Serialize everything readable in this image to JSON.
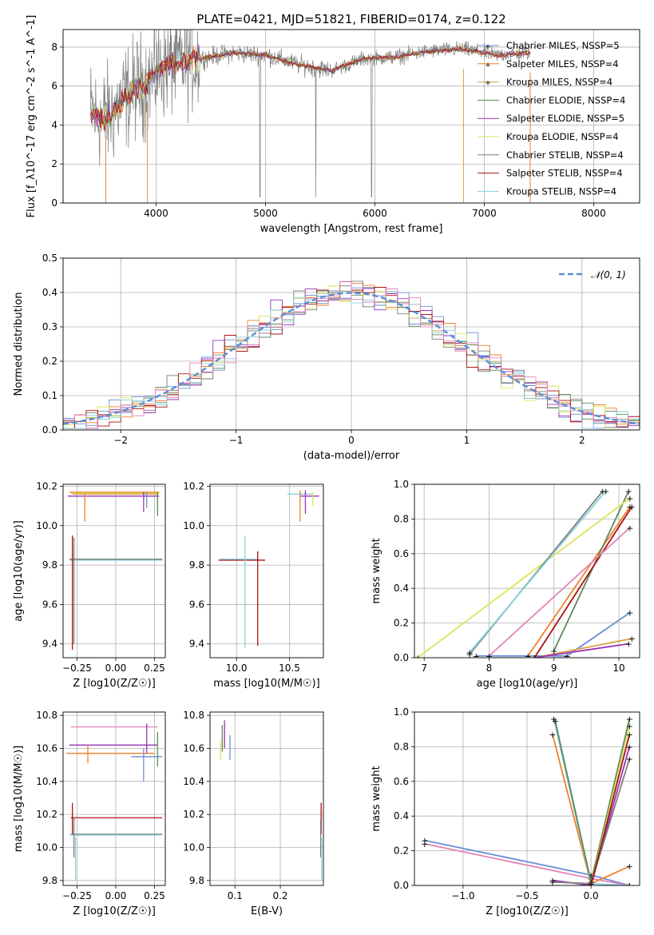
{
  "figure_title": "PLATE=0421, MJD=51821, FIBERID=0174, z=0.122",
  "colors": {
    "chabrier_miles": "#6a8fd8",
    "salpeter_miles": "#f07f2a",
    "kroupa_miles": "#d9a23a",
    "chabrier_elodie": "#5a8a5a",
    "salpeter_elodie": "#9933bb",
    "kroupa_elodie": "#dde55a",
    "chabrier_stelib": "#7f7f7f",
    "salpeter_stelib": "#aa1111",
    "kroupa_stelib": "#88d0dd",
    "normal_curve": "#5b8fd6",
    "pink": "#e283b8",
    "grid": "#b0b0b0"
  },
  "chart_data": [
    {
      "type": "line",
      "panel": "spectrum",
      "xlabel": "wavelength [Angstrom, rest frame]",
      "ylabel": "Flux [f_λ10^-17 erg cm^-2 s^-1 A^-1]",
      "xlim": [
        3150,
        8420
      ],
      "ylim": [
        0,
        8.9
      ],
      "xticks": [
        4000,
        5000,
        6000,
        7000,
        8000
      ],
      "yticks": [
        0,
        2,
        4,
        6,
        8
      ],
      "legend_position": "top-right",
      "legend": [
        "Chabrier MILES, N_SSP=5",
        "Salpeter MILES, N_SSP=4",
        "Kroupa MILES, N_SSP=4",
        "Chabrier ELODIE, N_SSP=4",
        "Salpeter ELODIE, N_SSP=5",
        "Kroupa ELODIE, N_SSP=4",
        "Chabrier STELIB, N_SSP=4",
        "Salpeter STELIB, N_SSP=4",
        "Kroupa STELIB, N_SSP=4"
      ],
      "continuum": {
        "x": [
          3400,
          3500,
          3600,
          3700,
          3800,
          3900,
          4000,
          4100,
          4300,
          4500,
          4700,
          5000,
          5300,
          5600,
          5900,
          6200,
          6500,
          6800,
          7100,
          7400
        ],
        "y": [
          4.7,
          4.3,
          4.6,
          5.3,
          5.9,
          6.1,
          6.7,
          7.1,
          7.3,
          7.5,
          7.7,
          7.6,
          7.1,
          6.8,
          7.4,
          7.5,
          7.8,
          7.9,
          7.6,
          7.7
        ]
      }
    },
    {
      "type": "line",
      "panel": "residual-histogram",
      "xlabel": "(data-model)/error",
      "ylabel": "Normed distribution",
      "xlim": [
        -2.5,
        2.5
      ],
      "ylim": [
        0,
        0.5
      ],
      "xticks": [
        -2,
        -1,
        0,
        1,
        2
      ],
      "yticks": [
        0.0,
        0.1,
        0.2,
        0.3,
        0.4,
        0.5
      ],
      "legend": [
        "𝒩(0, 1)"
      ],
      "legend_position": "top-right",
      "bin_width": 0.1
    },
    {
      "type": "scatter",
      "panel": "age-vs-Z",
      "xlabel": "Z [log10(Z/Z☉)]",
      "ylabel": "age [log10(age/yr)]",
      "xlim": [
        -0.34,
        0.32
      ],
      "ylim": [
        9.33,
        10.21
      ],
      "xticks": [
        -0.25,
        0.0,
        0.25
      ],
      "yticks": [
        9.4,
        9.6,
        9.8,
        10.0,
        10.2
      ],
      "hbars": [
        {
          "y": 10.17,
          "x0": -0.3,
          "x1": 0.28,
          "color": "#f07f2a"
        },
        {
          "y": 10.165,
          "x0": -0.29,
          "x1": 0.29,
          "color": "#dde55a"
        },
        {
          "y": 10.16,
          "x0": -0.28,
          "x1": 0.27,
          "color": "#d9a23a"
        },
        {
          "y": 10.15,
          "x0": -0.31,
          "x1": 0.28,
          "color": "#9933bb"
        },
        {
          "y": 9.83,
          "x0": -0.29,
          "x1": 0.3,
          "color": "#5a8a5a"
        },
        {
          "y": 9.825,
          "x0": -0.3,
          "x1": 0.3,
          "color": "#88d0dd"
        },
        {
          "y": 9.83,
          "x0": -0.3,
          "x1": 0.29,
          "color": "#7f7f7f"
        }
      ],
      "vbars": [
        {
          "x": -0.28,
          "y0": 9.37,
          "y1": 9.95,
          "color": "#aa1111"
        },
        {
          "x": -0.27,
          "y0": 9.4,
          "y1": 9.94,
          "color": "#7f7f7f"
        },
        {
          "x": -0.2,
          "y0": 10.02,
          "y1": 10.16,
          "color": "#f07f2a"
        },
        {
          "x": 0.18,
          "y0": 10.07,
          "y1": 10.17,
          "color": "#9933bb"
        },
        {
          "x": 0.2,
          "y0": 10.09,
          "y1": 10.17,
          "color": "#6a8fd8"
        },
        {
          "x": 0.27,
          "y0": 10.05,
          "y1": 10.17,
          "color": "#5a8a5a"
        }
      ]
    },
    {
      "type": "scatter",
      "panel": "age-vs-mass",
      "xlabel": "mass [log10(M/M☉)]",
      "ylabel": "",
      "xlim": [
        9.75,
        10.82
      ],
      "ylim": [
        9.33,
        10.21
      ],
      "xticks": [
        10.0,
        10.5
      ],
      "yticks": [
        9.4,
        9.6,
        9.8,
        10.0,
        10.2
      ],
      "hbars": [
        {
          "y": 10.16,
          "x0": 10.48,
          "x1": 10.72,
          "color": "#88d0dd"
        },
        {
          "y": 10.15,
          "x0": 10.6,
          "x1": 10.78,
          "color": "#9933bb"
        },
        {
          "y": 9.825,
          "x0": 9.83,
          "x1": 10.27,
          "color": "#aa1111"
        },
        {
          "y": 9.83,
          "x0": 9.85,
          "x1": 10.2,
          "color": "#88d0dd"
        }
      ],
      "vbars": [
        {
          "x": 10.08,
          "y0": 9.38,
          "y1": 9.95,
          "color": "#88d0dd"
        },
        {
          "x": 10.2,
          "y0": 9.39,
          "y1": 9.87,
          "color": "#aa1111"
        },
        {
          "x": 10.6,
          "y0": 10.02,
          "y1": 10.18,
          "color": "#f07f2a"
        },
        {
          "x": 10.65,
          "y0": 10.06,
          "y1": 10.18,
          "color": "#9933bb"
        },
        {
          "x": 10.72,
          "y0": 10.1,
          "y1": 10.17,
          "color": "#dde55a"
        }
      ]
    },
    {
      "type": "line",
      "panel": "weight-vs-age",
      "xlabel": "age [log10(age/yr)]",
      "ylabel": "mass weight",
      "xlim": [
        6.85,
        10.32
      ],
      "ylim": [
        0,
        1.0
      ],
      "xticks": [
        7,
        8,
        9,
        10
      ],
      "yticks": [
        0.0,
        0.2,
        0.4,
        0.6,
        0.8,
        1.0
      ],
      "series": [
        {
          "color": "#6a8fd8",
          "x": [
            7.8,
            9.2,
            10.17
          ],
          "y": [
            0.01,
            0.01,
            0.26
          ]
        },
        {
          "color": "#f07f2a",
          "x": [
            8.6,
            10.17
          ],
          "y": [
            0.01,
            0.87
          ]
        },
        {
          "color": "#d9a23a",
          "x": [
            8.7,
            10.2
          ],
          "y": [
            0.0,
            0.11
          ]
        },
        {
          "color": "#5a8a5a",
          "x": [
            9.0,
            10.15
          ],
          "y": [
            0.04,
            0.96
          ]
        },
        {
          "color": "#9933bb",
          "x": [
            8.7,
            10.15
          ],
          "y": [
            0.0,
            0.08
          ]
        },
        {
          "color": "#dde55a",
          "x": [
            6.9,
            10.17
          ],
          "y": [
            0.0,
            0.92
          ]
        },
        {
          "color": "#7f7f7f",
          "x": [
            7.7,
            9.75
          ],
          "y": [
            0.02,
            0.96
          ]
        },
        {
          "color": "#aa1111",
          "x": [
            8.7,
            10.2
          ],
          "y": [
            0.0,
            0.87
          ]
        },
        {
          "color": "#88d0dd",
          "x": [
            7.7,
            9.8
          ],
          "y": [
            0.03,
            0.96
          ]
        },
        {
          "color": "#e283b8",
          "x": [
            8.0,
            10.17
          ],
          "y": [
            0.01,
            0.75
          ]
        }
      ]
    },
    {
      "type": "scatter",
      "panel": "mass-vs-Z",
      "xlabel": "Z [log10(Z/Z☉)]",
      "ylabel": "mass [log10(M/M☉)]",
      "xlim": [
        -0.34,
        0.32
      ],
      "ylim": [
        9.77,
        10.82
      ],
      "xticks": [
        -0.25,
        0.0,
        0.25
      ],
      "yticks": [
        9.8,
        10.0,
        10.2,
        10.4,
        10.6,
        10.8
      ],
      "hbars": [
        {
          "y": 10.73,
          "x0": -0.29,
          "x1": 0.27,
          "color": "#e283b8"
        },
        {
          "y": 10.62,
          "x0": -0.3,
          "x1": 0.27,
          "color": "#9933bb"
        },
        {
          "y": 10.57,
          "x0": -0.32,
          "x1": 0.25,
          "color": "#f07f2a"
        },
        {
          "y": 10.55,
          "x0": 0.1,
          "x1": 0.3,
          "color": "#6a8fd8"
        },
        {
          "y": 10.18,
          "x0": -0.29,
          "x1": 0.3,
          "color": "#aa1111"
        },
        {
          "y": 10.08,
          "x0": -0.29,
          "x1": 0.3,
          "color": "#7f7f7f"
        },
        {
          "y": 10.075,
          "x0": -0.3,
          "x1": 0.29,
          "color": "#88d0dd"
        }
      ],
      "vbars": [
        {
          "x": -0.28,
          "y0": 10.08,
          "y1": 10.27,
          "color": "#aa1111"
        },
        {
          "x": -0.27,
          "y0": 9.94,
          "y1": 10.18,
          "color": "#7f7f7f"
        },
        {
          "x": -0.26,
          "y0": 9.8,
          "y1": 10.06,
          "color": "#88d0dd"
        },
        {
          "x": -0.18,
          "y0": 10.51,
          "y1": 10.62,
          "color": "#f07f2a"
        },
        {
          "x": 0.18,
          "y0": 10.4,
          "y1": 10.6,
          "color": "#6a8fd8"
        },
        {
          "x": 0.2,
          "y0": 10.57,
          "y1": 10.75,
          "color": "#9933bb"
        },
        {
          "x": 0.27,
          "y0": 10.49,
          "y1": 10.7,
          "color": "#5a8a5a"
        }
      ]
    },
    {
      "type": "scatter",
      "panel": "mass-vs-EBV",
      "xlabel": "E(B-V)",
      "ylabel": "",
      "xlim": [
        0.045,
        0.295
      ],
      "ylim": [
        9.77,
        10.82
      ],
      "xticks": [
        0.1,
        0.2
      ],
      "yticks": [
        9.8,
        10.0,
        10.2,
        10.4,
        10.6,
        10.8
      ],
      "vbars": [
        {
          "x": 0.068,
          "y0": 10.53,
          "y1": 10.65,
          "color": "#dde55a"
        },
        {
          "x": 0.072,
          "y0": 10.58,
          "y1": 10.74,
          "color": "#5a8a5a"
        },
        {
          "x": 0.077,
          "y0": 10.6,
          "y1": 10.77,
          "color": "#9933bb"
        },
        {
          "x": 0.089,
          "y0": 10.53,
          "y1": 10.68,
          "color": "#6a8fd8"
        },
        {
          "x": 0.29,
          "y0": 10.08,
          "y1": 10.27,
          "color": "#aa1111"
        },
        {
          "x": 0.289,
          "y0": 9.94,
          "y1": 10.17,
          "color": "#7f7f7f"
        },
        {
          "x": 0.291,
          "y0": 9.8,
          "y1": 10.06,
          "color": "#88d0dd"
        }
      ]
    },
    {
      "type": "line",
      "panel": "weight-vs-Z",
      "xlabel": "Z [log10(Z/Z☉)]",
      "ylabel": "mass weight",
      "xlim": [
        -1.38,
        0.38
      ],
      "ylim": [
        0,
        1.0
      ],
      "xticks": [
        -1.0,
        -0.5,
        0.0
      ],
      "yticks": [
        0.0,
        0.2,
        0.4,
        0.6,
        0.8,
        1.0
      ],
      "series": [
        {
          "color": "#6a8fd8",
          "x": [
            -1.3,
            0.0,
            0.3
          ],
          "y": [
            0.26,
            0.06,
            0.0
          ]
        },
        {
          "color": "#e283b8",
          "x": [
            -1.3,
            0.0,
            0.3
          ],
          "y": [
            0.24,
            0.04,
            0.0
          ]
        },
        {
          "color": "#f07f2a",
          "x": [
            -0.3,
            0.0,
            0.3
          ],
          "y": [
            0.87,
            0.01,
            0.11
          ]
        },
        {
          "color": "#88d0dd",
          "x": [
            -0.29,
            0.0,
            0.3
          ],
          "y": [
            0.96,
            0.01,
            0.0
          ]
        },
        {
          "color": "#5a8a5a",
          "x": [
            -0.28,
            0.0,
            0.3
          ],
          "y": [
            0.95,
            0.02,
            0.96
          ]
        },
        {
          "color": "#9933bb",
          "x": [
            -0.3,
            0.0,
            0.3
          ],
          "y": [
            0.03,
            0.0,
            0.8
          ]
        },
        {
          "color": "#dde55a",
          "x": [
            0.0,
            0.3
          ],
          "y": [
            0.0,
            0.92
          ]
        },
        {
          "color": "#7f7f7f",
          "x": [
            -0.3,
            0.0,
            0.3
          ],
          "y": [
            0.02,
            0.01,
            0.73
          ]
        },
        {
          "color": "#aa1111",
          "x": [
            0.0,
            0.3
          ],
          "y": [
            0.0,
            0.87
          ]
        }
      ]
    }
  ]
}
